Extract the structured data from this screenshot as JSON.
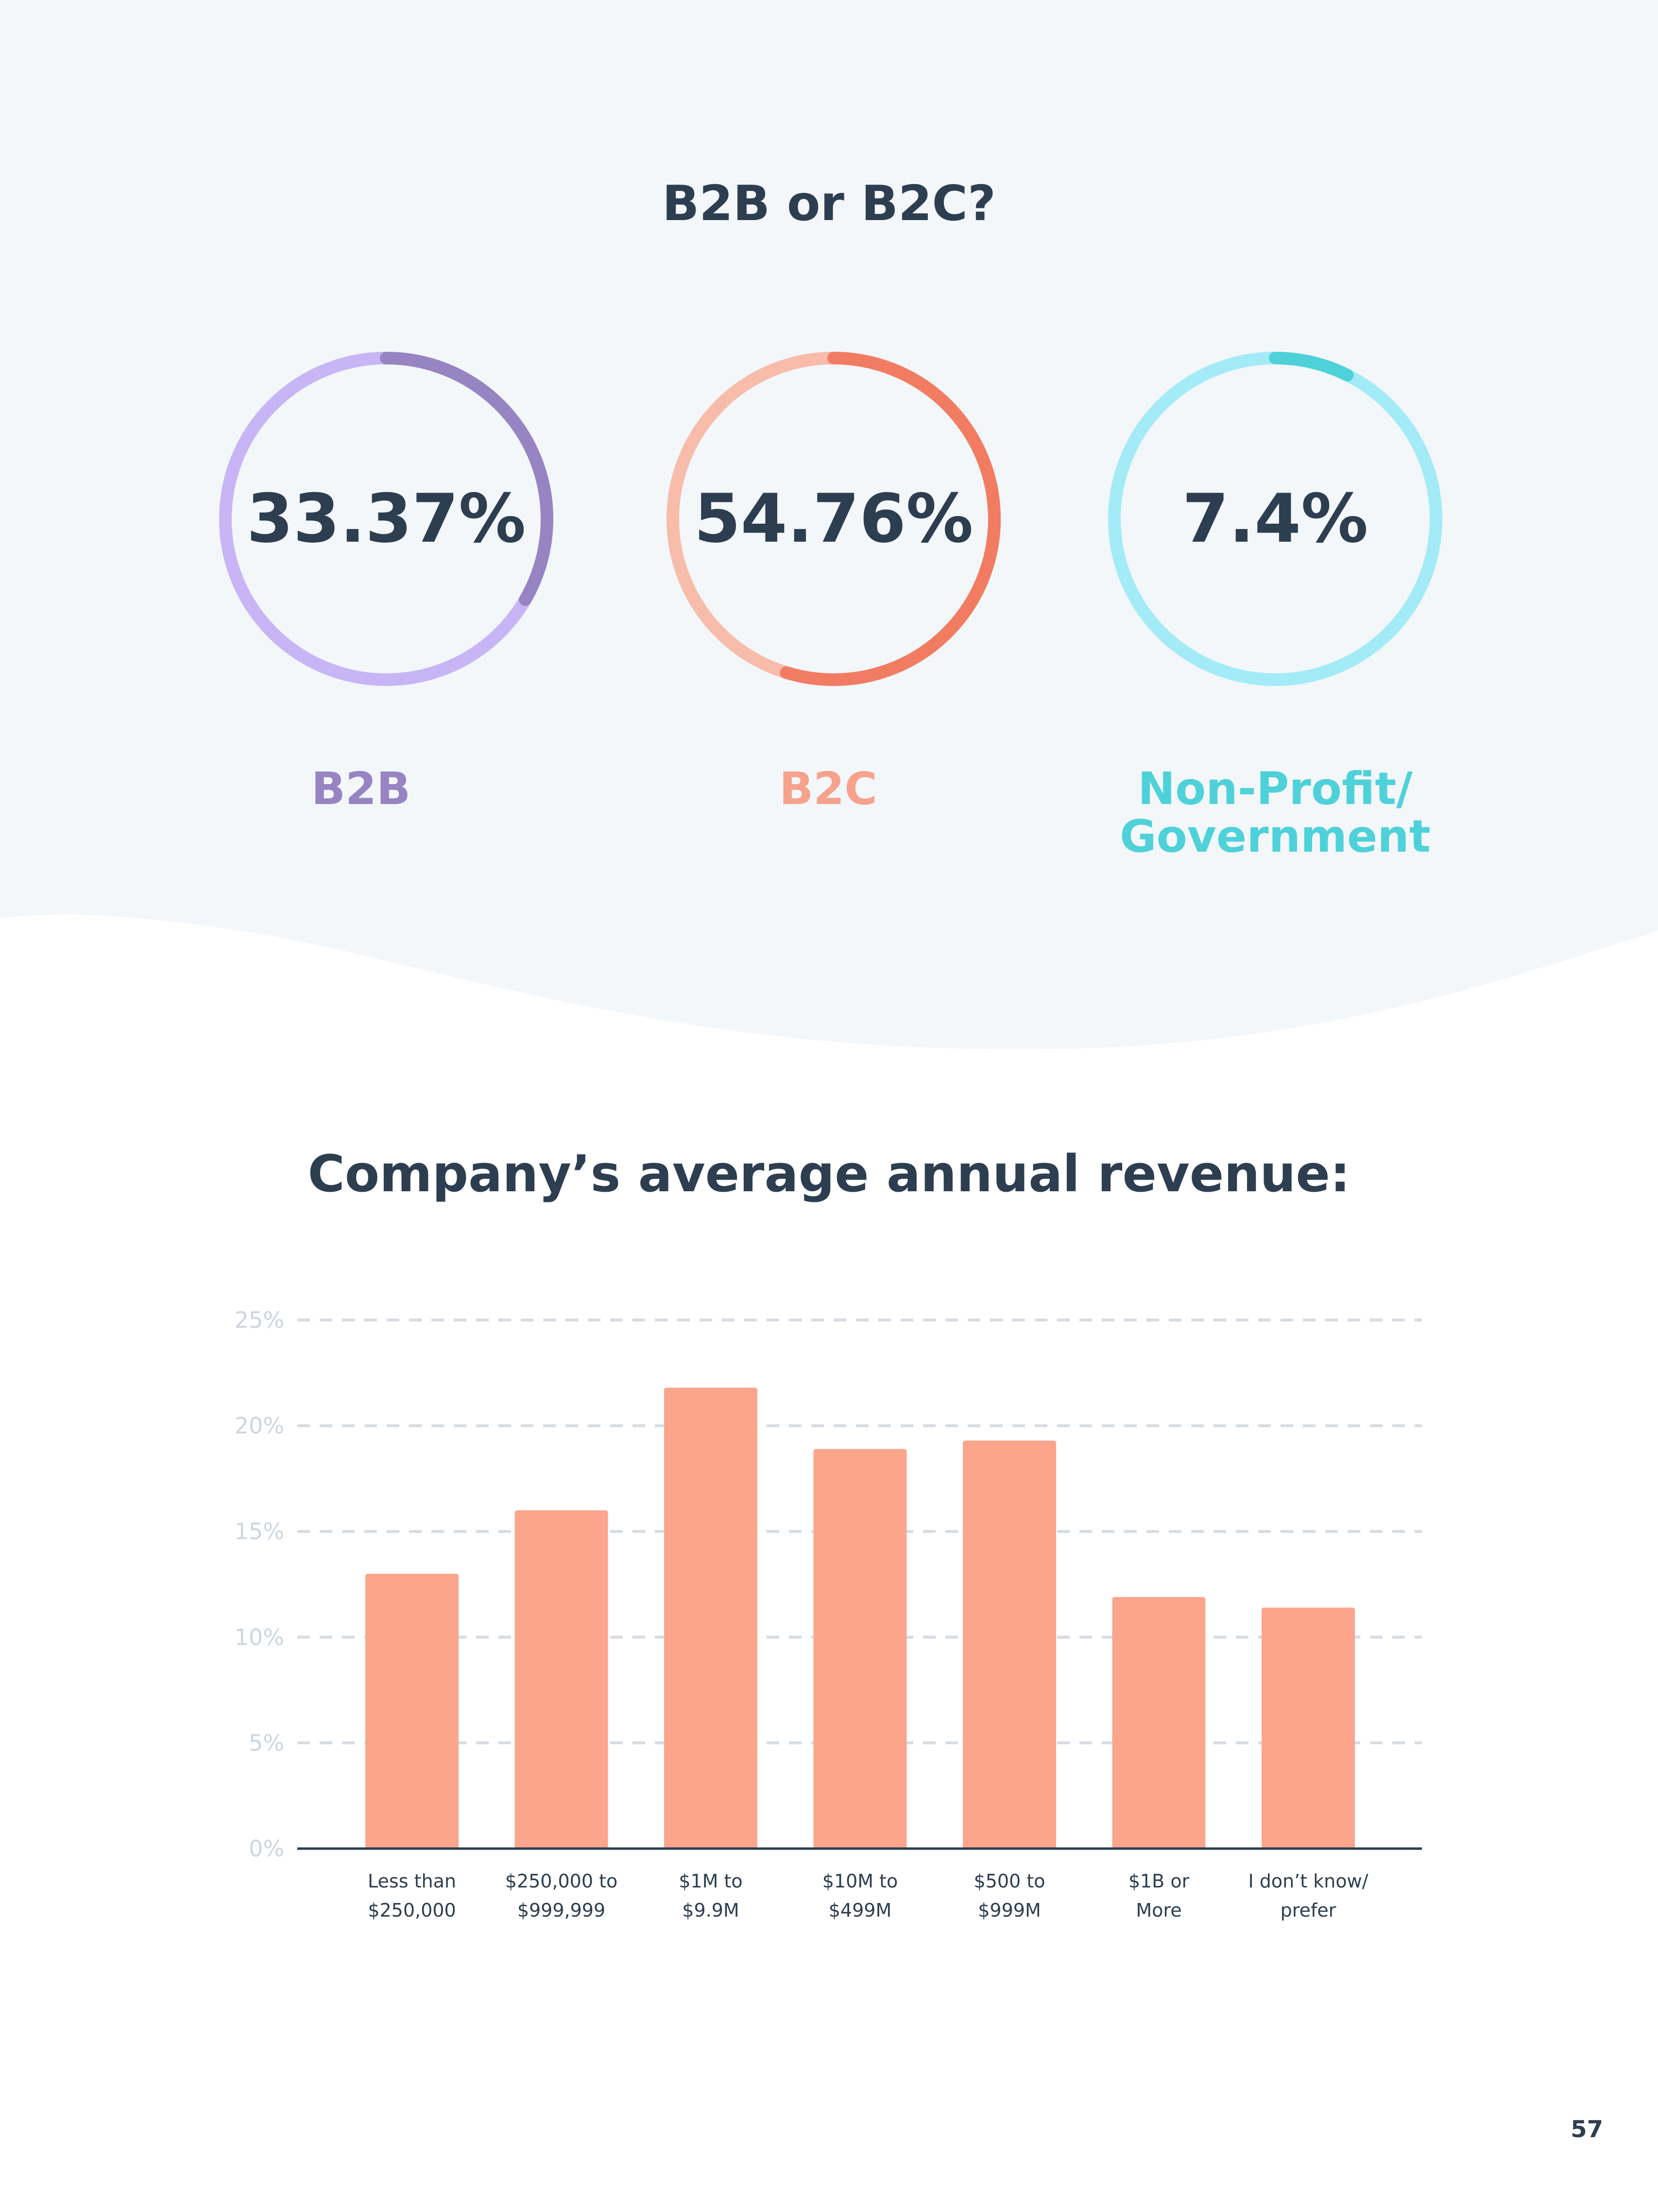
{
  "page": {
    "number": "57",
    "colors": {
      "background_top": "#f3f7fa",
      "text": "#2d3e50"
    }
  },
  "donut_section": {
    "title": "B2B or B2C?",
    "items": [
      {
        "value_label": "33.37%",
        "percent": 33.37,
        "label": "B2B",
        "color_light": "#c8b5f5",
        "color_dark": "#9784c2",
        "label_color": "#9784c2"
      },
      {
        "value_label": "54.76%",
        "percent": 54.76,
        "label": "B2C",
        "color_light": "#f8bcab",
        "color_dark": "#f27c62",
        "label_color": "#f6a28c"
      },
      {
        "value_label": "7.4%",
        "percent": 7.4,
        "label_line1": "Non-Profit/",
        "label_line2": "Government",
        "color_light": "#a2ebf7",
        "color_dark": "#4fd1d9",
        "label_color": "#4fd1d9"
      }
    ]
  },
  "bar_section": {
    "title": "Company’s average annual revenue:"
  },
  "chart_data": [
    {
      "type": "pie",
      "labels": [
        "B2B",
        "B2C",
        "Non-Profit/ Government"
      ],
      "values": [
        33.37,
        54.76,
        7.4
      ]
    },
    {
      "type": "bar",
      "title": "Company’s average annual revenue:",
      "categories": [
        [
          "Less than",
          "$250,000"
        ],
        [
          "$250,000 to",
          "$999,999"
        ],
        [
          "$1M to",
          "$9.9M"
        ],
        [
          "$10M to",
          "$499M"
        ],
        [
          "$500 to",
          "$999M"
        ],
        [
          "$1B or",
          "More"
        ],
        [
          "I don’t know/",
          "prefer"
        ]
      ],
      "values": [
        13,
        16,
        21.8,
        18.9,
        19.3,
        11.9,
        11.4
      ],
      "ylim": [
        0,
        25
      ],
      "yticks": [
        "0%",
        "5%",
        "10%",
        "15%",
        "20%",
        "25%"
      ],
      "grid": true,
      "bar_color": "#fba58d",
      "grid_color": "#d5dce3",
      "tick_color": "#ccd6e0",
      "axis_color": "#2d3e50"
    }
  ]
}
